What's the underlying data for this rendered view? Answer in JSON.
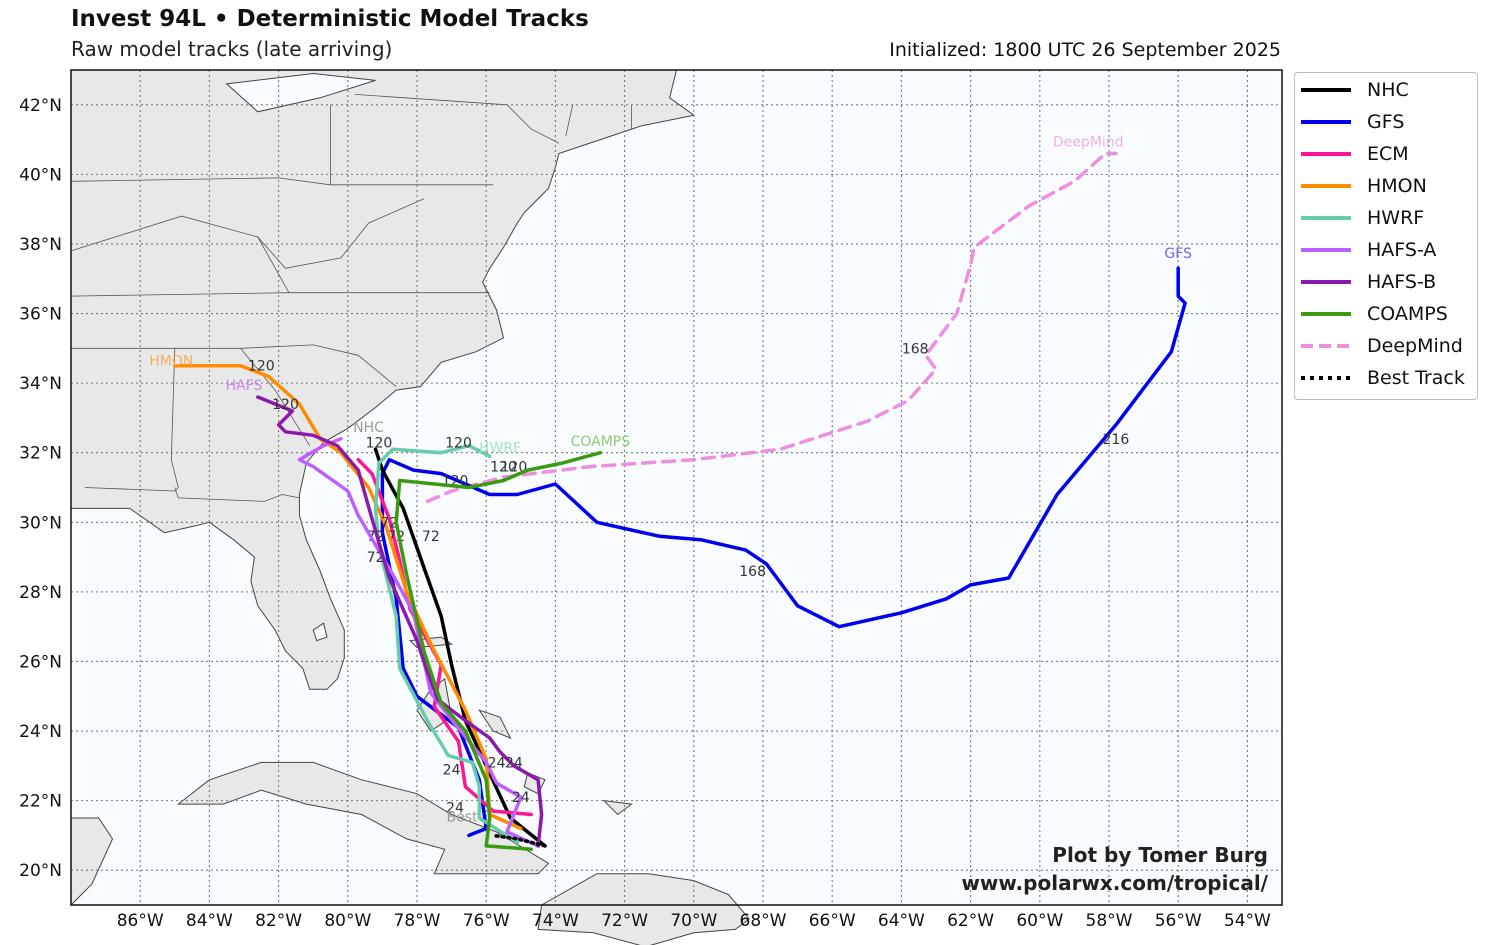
{
  "header": {
    "title": "Invest 94L • Deterministic Model Tracks",
    "subtitle": "Raw model tracks (late arriving)",
    "initialized": "Initialized: 1800 UTC 26 September 2025"
  },
  "credit": {
    "line1": "Plot by Tomer Burg",
    "line2": "www.polarwx.com/tropical/"
  },
  "colors": {
    "land": "#e8e8e8",
    "ocean": "#f8fcff",
    "grid": "#777777",
    "border": "#444444"
  },
  "map": {
    "lon_range": [
      -88,
      -53
    ],
    "lat_range": [
      19,
      43
    ],
    "lon_ticks": [
      "86°W",
      "84°W",
      "82°W",
      "80°W",
      "78°W",
      "76°W",
      "74°W",
      "72°W",
      "70°W",
      "68°W",
      "66°W",
      "64°W",
      "62°W",
      "60°W",
      "58°W",
      "56°W",
      "54°W"
    ],
    "lat_ticks": [
      "20°N",
      "22°N",
      "24°N",
      "26°N",
      "28°N",
      "30°N",
      "32°N",
      "34°N",
      "36°N",
      "38°N",
      "40°N",
      "42°N"
    ]
  },
  "legend": [
    {
      "name": "NHC",
      "color": "#000000",
      "style": "solid"
    },
    {
      "name": "GFS",
      "color": "#0000ee",
      "style": "solid"
    },
    {
      "name": "ECM",
      "color": "#ff1493",
      "style": "solid"
    },
    {
      "name": "HMON",
      "color": "#ff8c00",
      "style": "solid"
    },
    {
      "name": "HWRF",
      "color": "#66cdaa",
      "style": "solid"
    },
    {
      "name": "HAFS-A",
      "color": "#bf5fff",
      "style": "solid"
    },
    {
      "name": "HAFS-B",
      "color": "#8b1aab",
      "style": "solid"
    },
    {
      "name": "COAMPS",
      "color": "#3a9a10",
      "style": "solid"
    },
    {
      "name": "DeepMind",
      "color": "#ee8ee0",
      "style": "dashed"
    },
    {
      "name": "Best Track",
      "color": "#000000",
      "style": "dotted"
    }
  ],
  "tracks": [
    {
      "name": "DeepMind",
      "color": "#ee8ee0",
      "dash": "12,8",
      "label": "DeepMind",
      "points": [
        [
          -77.7,
          30.6
        ],
        [
          -77.0,
          30.9
        ],
        [
          -75.5,
          31.3
        ],
        [
          -73,
          31.6
        ],
        [
          -70,
          31.8
        ],
        [
          -67.5,
          32.1
        ],
        [
          -65,
          32.9
        ],
        [
          -63.8,
          33.5
        ],
        [
          -63.0,
          34.4
        ],
        [
          -63.3,
          34.8
        ],
        [
          -62.4,
          36.0
        ],
        [
          -62.0,
          37.4
        ],
        [
          -61.9,
          37.9
        ],
        [
          -60.3,
          39.1
        ],
        [
          -59.0,
          39.8
        ],
        [
          -58.1,
          40.6
        ],
        [
          -57.8,
          40.6
        ]
      ],
      "hours": [
        {
          "lon": -63.6,
          "lat": 35.0,
          "text": "168"
        },
        {
          "lon": -75.2,
          "lat": 31.6,
          "text": "120"
        }
      ]
    },
    {
      "name": "GFS",
      "color": "#0000ee",
      "dash": "",
      "label": "GFS",
      "points": [
        [
          -76.5,
          21.0
        ],
        [
          -76.0,
          21.2
        ],
        [
          -76.2,
          22.6
        ],
        [
          -76.8,
          24.1
        ],
        [
          -78,
          25.0
        ],
        [
          -78.4,
          25.8
        ],
        [
          -78.6,
          27.8
        ],
        [
          -79.0,
          29.7
        ],
        [
          -79.0,
          31.4
        ],
        [
          -78.8,
          31.8
        ],
        [
          -78.1,
          31.5
        ],
        [
          -77.3,
          31.4
        ],
        [
          -76.6,
          31.1
        ],
        [
          -75.9,
          30.8
        ],
        [
          -75.1,
          30.8
        ],
        [
          -74.0,
          31.1
        ],
        [
          -72.8,
          30.0
        ],
        [
          -71.0,
          29.6
        ],
        [
          -69.8,
          29.5
        ],
        [
          -68.5,
          29.2
        ],
        [
          -67.9,
          28.8
        ],
        [
          -67.0,
          27.6
        ],
        [
          -65.8,
          27.0
        ],
        [
          -64.0,
          27.4
        ],
        [
          -62.7,
          27.8
        ],
        [
          -62.0,
          28.2
        ],
        [
          -60.9,
          28.4
        ],
        [
          -59.5,
          30.8
        ],
        [
          -57.8,
          32.8
        ],
        [
          -56.2,
          34.9
        ],
        [
          -55.8,
          36.3
        ],
        [
          -56.0,
          36.5
        ],
        [
          -56.0,
          37.3
        ]
      ],
      "hours": [
        {
          "lon": -68.3,
          "lat": 28.6,
          "text": "168"
        },
        {
          "lon": -57.8,
          "lat": 32.4,
          "text": "216"
        },
        {
          "lon": -76.9,
          "lat": 31.2,
          "text": "120"
        }
      ]
    },
    {
      "name": "NHC",
      "color": "#000000",
      "dash": "",
      "label": "NHC",
      "points": [
        [
          -74.3,
          20.7
        ],
        [
          -75.3,
          21.5
        ],
        [
          -76.0,
          23.0
        ],
        [
          -76.6,
          24.3
        ],
        [
          -77.0,
          25.9
        ],
        [
          -77.3,
          27.3
        ],
        [
          -77.8,
          28.7
        ],
        [
          -78.4,
          30.4
        ],
        [
          -79.0,
          31.5
        ],
        [
          -79.2,
          32.1
        ]
      ],
      "hours": [
        {
          "lon": -77.6,
          "lat": 29.6,
          "text": "72"
        },
        {
          "lon": -79.1,
          "lat": 32.3,
          "text": "120"
        }
      ]
    },
    {
      "name": "ECM",
      "color": "#ff1493",
      "dash": "",
      "label": "ECM",
      "points": [
        [
          -74.7,
          21.6
        ],
        [
          -75.8,
          21.7
        ],
        [
          -76.6,
          22.4
        ],
        [
          -76.8,
          23.7
        ],
        [
          -77.5,
          24.7
        ],
        [
          -77.3,
          25.9
        ],
        [
          -78.2,
          27.5
        ],
        [
          -78.5,
          28.9
        ],
        [
          -78.8,
          30.1
        ],
        [
          -79.3,
          31.4
        ],
        [
          -79.7,
          31.8
        ]
      ],
      "hours": [
        {
          "lon": -76.9,
          "lat": 21.8,
          "text": "24"
        },
        {
          "lon": -78.6,
          "lat": 29.6,
          "text": "72"
        }
      ]
    },
    {
      "name": "HMON",
      "color": "#ff8c00",
      "dash": "",
      "label": "HMON",
      "points": [
        [
          -75.0,
          21.2
        ],
        [
          -75.9,
          21.6
        ],
        [
          -76.0,
          23.2
        ],
        [
          -76.6,
          24.6
        ],
        [
          -77.6,
          26.5
        ],
        [
          -78.3,
          28.0
        ],
        [
          -78.9,
          29.9
        ],
        [
          -79.4,
          31.0
        ],
        [
          -80.2,
          32.0
        ],
        [
          -80.8,
          32.4
        ],
        [
          -81.4,
          33.4
        ],
        [
          -82.3,
          34.2
        ],
        [
          -83.1,
          34.5
        ],
        [
          -85,
          34.5
        ]
      ],
      "hours": [
        {
          "lon": -82.5,
          "lat": 34.5,
          "text": "120"
        },
        {
          "lon": -78.8,
          "lat": 30.0,
          "text": "72"
        }
      ]
    },
    {
      "name": "HWRF",
      "color": "#66cdaa",
      "dash": "",
      "label": "HWRF",
      "points": [
        [
          -75.1,
          20.8
        ],
        [
          -76.2,
          21.5
        ],
        [
          -76.2,
          22.4
        ],
        [
          -76.4,
          23.1
        ],
        [
          -77.1,
          23.3
        ],
        [
          -77.7,
          24.3
        ],
        [
          -78.5,
          25.8
        ],
        [
          -78.6,
          27.3
        ],
        [
          -79.1,
          29.3
        ],
        [
          -79.2,
          30.4
        ],
        [
          -79.1,
          31.7
        ],
        [
          -78.7,
          32.1
        ],
        [
          -77.3,
          32.0
        ],
        [
          -76.5,
          32.2
        ],
        [
          -75.9,
          31.9
        ]
      ],
      "hours": [
        {
          "lon": -76.8,
          "lat": 32.3,
          "text": "120"
        },
        {
          "lon": -77.0,
          "lat": 22.9,
          "text": "24"
        },
        {
          "lon": -79.2,
          "lat": 29.6,
          "text": "72"
        }
      ]
    },
    {
      "name": "HAFS-A",
      "color": "#bf5fff",
      "dash": "",
      "label": "HAFS-A",
      "points": [
        [
          -74.5,
          20.7
        ],
        [
          -75.4,
          21.1
        ],
        [
          -75.0,
          22.1
        ],
        [
          -75.7,
          22.5
        ],
        [
          -76.0,
          23.1
        ],
        [
          -76.9,
          24.2
        ],
        [
          -77.6,
          25.1
        ],
        [
          -78.1,
          27.4
        ],
        [
          -78.7,
          28.5
        ],
        [
          -79.7,
          30.2
        ],
        [
          -80.0,
          30.9
        ],
        [
          -81.0,
          31.6
        ],
        [
          -81.4,
          31.8
        ],
        [
          -80.7,
          32.2
        ],
        [
          -80.2,
          32.4
        ]
      ],
      "hours": [
        {
          "lon": -79.2,
          "lat": 29.0,
          "text": "72"
        },
        {
          "lon": -75.0,
          "lat": 22.1,
          "text": "24"
        }
      ]
    },
    {
      "name": "HAFS-B",
      "color": "#8b1aab",
      "dash": "",
      "label": "HAFS-B",
      "points": [
        [
          -74.5,
          20.7
        ],
        [
          -74.4,
          21.6
        ],
        [
          -74.5,
          22.6
        ],
        [
          -75.2,
          23.0
        ],
        [
          -75.6,
          23.4
        ],
        [
          -75.9,
          23.8
        ],
        [
          -76.6,
          24.3
        ],
        [
          -77.4,
          24.9
        ],
        [
          -77.8,
          26.0
        ],
        [
          -78.0,
          26.6
        ],
        [
          -78.8,
          28.4
        ],
        [
          -79.3,
          30.1
        ],
        [
          -79.7,
          31.5
        ],
        [
          -80.3,
          32.2
        ],
        [
          -81.0,
          32.5
        ],
        [
          -81.8,
          32.6
        ],
        [
          -82.0,
          32.8
        ],
        [
          -81.6,
          33.2
        ],
        [
          -82.1,
          33.4
        ],
        [
          -82.6,
          33.6
        ]
      ],
      "hours": [
        {
          "lon": -81.8,
          "lat": 33.4,
          "text": "120"
        },
        {
          "lon": -75.2,
          "lat": 23.1,
          "text": "24"
        }
      ]
    },
    {
      "name": "COAMPS",
      "color": "#3a9a10",
      "dash": "",
      "label": "COAMPS",
      "points": [
        [
          -74.7,
          20.6
        ],
        [
          -76.0,
          20.7
        ],
        [
          -75.9,
          21.5
        ],
        [
          -76.0,
          22.6
        ],
        [
          -76.6,
          24.0
        ],
        [
          -77.3,
          24.8
        ],
        [
          -77.8,
          26.3
        ],
        [
          -78.3,
          28.5
        ],
        [
          -78.6,
          30.0
        ],
        [
          -78.5,
          31.2
        ],
        [
          -77.5,
          31.1
        ],
        [
          -76.5,
          31.0
        ],
        [
          -75.5,
          31.2
        ],
        [
          -74.8,
          31.5
        ],
        [
          -73.8,
          31.7
        ],
        [
          -72.7,
          32.0
        ]
      ],
      "hours": [
        {
          "lon": -75.5,
          "lat": 31.6,
          "text": "120"
        },
        {
          "lon": -75.7,
          "lat": 23.1,
          "text": "24"
        }
      ]
    },
    {
      "name": "Best Track",
      "color": "#000000",
      "dash": "2,4",
      "label": "Best",
      "points": [
        [
          -74.3,
          20.7
        ],
        [
          -75.1,
          20.9
        ],
        [
          -75.8,
          21.0
        ]
      ],
      "hours": []
    }
  ],
  "track_labels": [
    {
      "text": "DeepMind",
      "lon": -58.6,
      "lat": 40.8,
      "color": "#f0b0e6"
    },
    {
      "text": "GFS",
      "lon": -56.0,
      "lat": 37.6,
      "color": "#6a6ae8"
    },
    {
      "text": "HMON",
      "lon": -85.1,
      "lat": 34.5,
      "color": "#f5b060"
    },
    {
      "text": "HAFS",
      "lon": -83.0,
      "lat": 33.8,
      "color": "#c88ae8"
    },
    {
      "text": "NHC",
      "lon": -79.4,
      "lat": 32.6,
      "color": "#9a9a9a"
    },
    {
      "text": "HWRF",
      "lon": -75.6,
      "lat": 32.0,
      "color": "#a8e0c8"
    },
    {
      "text": "COAMPS",
      "lon": -72.7,
      "lat": 32.2,
      "color": "#8ccc70"
    },
    {
      "text": "Best",
      "lon": -76.7,
      "lat": 21.4,
      "color": "#999999"
    }
  ]
}
